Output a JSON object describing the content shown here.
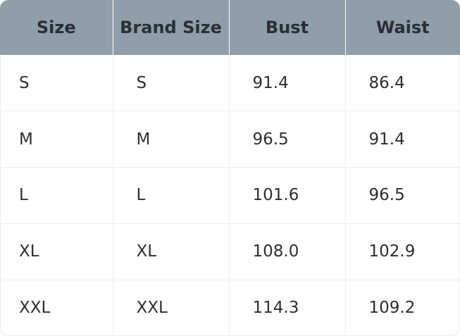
{
  "table": {
    "headers": [
      "Size",
      "Brand Size",
      "Bust",
      "Waist"
    ],
    "rows": [
      [
        "S",
        "S",
        "91.4",
        "86.4"
      ],
      [
        "M",
        "M",
        "96.5",
        "91.4"
      ],
      [
        "L",
        "L",
        "101.6",
        "96.5"
      ],
      [
        "XL",
        "XL",
        "108.0",
        "102.9"
      ],
      [
        "XXL",
        "XXL",
        "114.3",
        "109.2"
      ]
    ]
  },
  "colors": {
    "header_bg": "#8f9ea8",
    "header_text": "#2b2f33",
    "cell_text": "#2e2e2e",
    "grid_line": "#ededed"
  }
}
